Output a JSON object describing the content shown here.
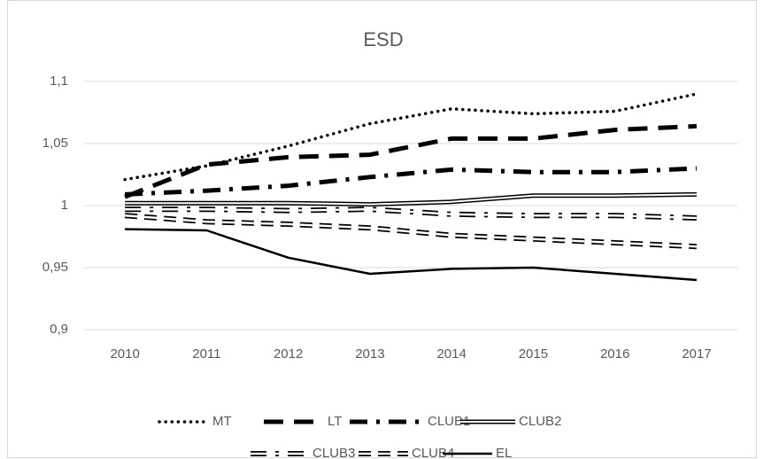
{
  "chart_data": {
    "type": "line",
    "title": "ESD",
    "categories": [
      "2010",
      "2011",
      "2012",
      "2013",
      "2014",
      "2015",
      "2016",
      "2017"
    ],
    "series": [
      {
        "name": "MT",
        "color": "#000000",
        "style": "dotted",
        "values": [
          1.021,
          1.032,
          1.048,
          1.066,
          1.078,
          1.074,
          1.076,
          1.09
        ]
      },
      {
        "name": "LT",
        "color": "#000000",
        "style": "dashed",
        "values": [
          1.007,
          1.033,
          1.039,
          1.041,
          1.054,
          1.054,
          1.061,
          1.064
        ]
      },
      {
        "name": "CLUB1",
        "color": "#000000",
        "style": "dash-dot",
        "values": [
          1.009,
          1.012,
          1.016,
          1.023,
          1.029,
          1.027,
          1.027,
          1.03
        ]
      },
      {
        "name": "CLUB2",
        "color": "#000000",
        "style": "double",
        "values": [
          1.002,
          1.002,
          1.002,
          1.001,
          1.003,
          1.008,
          1.008,
          1.009
        ]
      },
      {
        "name": "CLUB3",
        "color": "#000000",
        "style": "double-dash-dot",
        "values": [
          0.997,
          0.997,
          0.996,
          0.997,
          0.993,
          0.992,
          0.992,
          0.99
        ]
      },
      {
        "name": "CLUB4",
        "color": "#000000",
        "style": "double-dashed",
        "values": [
          0.992,
          0.987,
          0.985,
          0.982,
          0.976,
          0.973,
          0.97,
          0.967
        ]
      },
      {
        "name": "EL",
        "color": "#000000",
        "style": "solid",
        "values": [
          0.981,
          0.98,
          0.958,
          0.945,
          0.949,
          0.95,
          0.945,
          0.94
        ]
      }
    ],
    "ylim": [
      0.9,
      1.1
    ],
    "yticks": [
      {
        "value": 0.9,
        "label": "0,9"
      },
      {
        "value": 0.95,
        "label": "0,95"
      },
      1,
      {
        "value": 1.05,
        "label": "1,05"
      },
      {
        "value": 1.1,
        "label": "1,1"
      }
    ],
    "grid": true,
    "legend": "bottom"
  }
}
